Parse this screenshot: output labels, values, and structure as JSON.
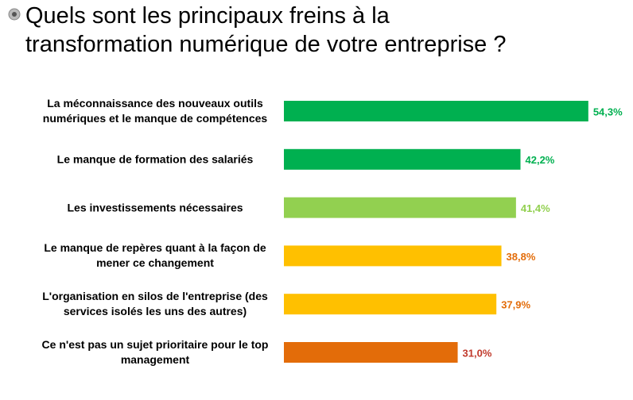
{
  "chart_data": {
    "type": "bar",
    "orientation": "horizontal",
    "title": "Quels sont les principaux freins à la\ntransformation numérique de votre entreprise ?",
    "categories": [
      "La méconnaissance des nouveaux outils numériques et le manque de compétences",
      "Le manque de formation des salariés",
      "Les investissements nécessaires",
      "Le manque de repères quant à la façon de mener ce changement",
      "L'organisation en silos de l'entreprise (des services isolés les uns des autres)",
      "Ce n'est pas un sujet prioritaire pour le top management"
    ],
    "values": [
      54.3,
      42.2,
      41.4,
      38.8,
      37.9,
      31.0
    ],
    "value_labels": [
      "54,3%",
      "42,2%",
      "41,4%",
      "38,8%",
      "37,9%",
      "31,0%"
    ],
    "colors": [
      "#00b050",
      "#00b050",
      "#92d050",
      "#ffc000",
      "#ffc000",
      "#e36c09"
    ],
    "label_colors": [
      "#00b050",
      "#00b050",
      "#92d050",
      "#e36c09",
      "#e36c09",
      "#c0392b"
    ]
  }
}
